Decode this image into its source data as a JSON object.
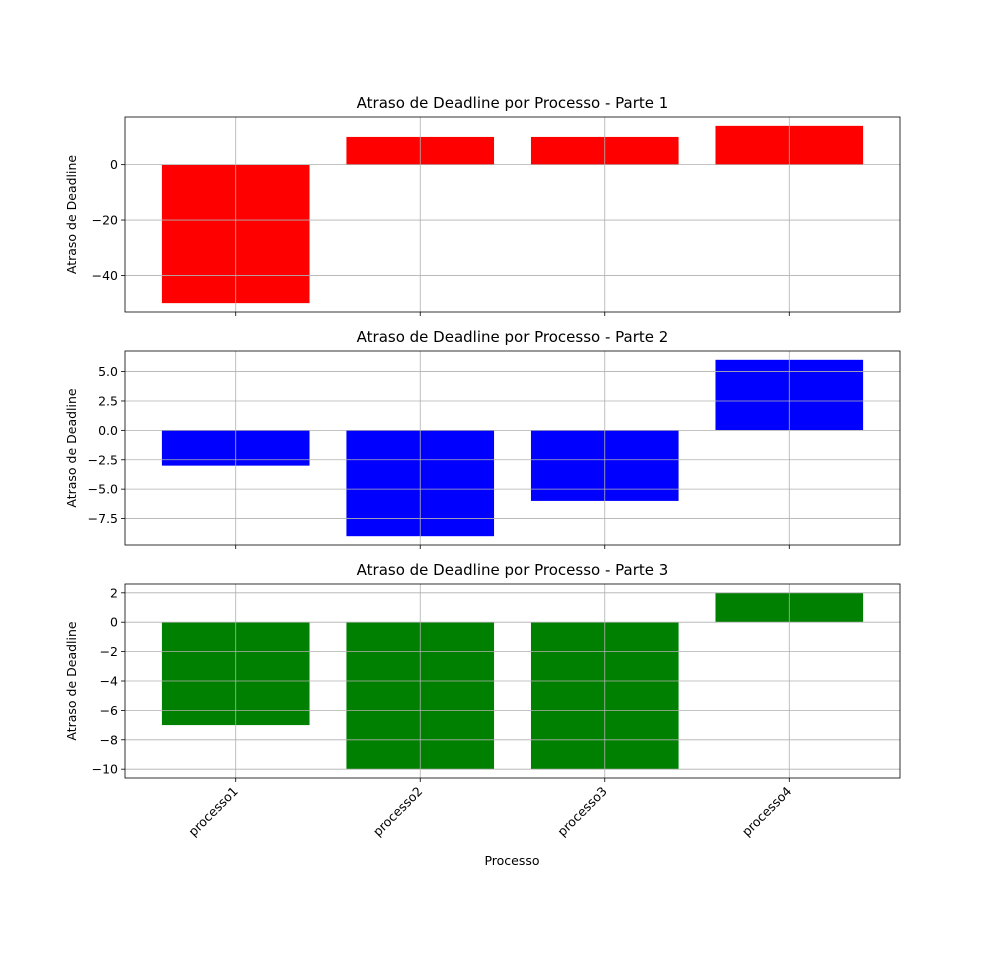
{
  "chart_data": [
    {
      "type": "bar",
      "title": "Atraso de Deadline por Processo - Parte 1",
      "ylabel": "Atraso de Deadline",
      "xlabel": "",
      "categories": [
        "processo1",
        "processo2",
        "processo3",
        "processo4"
      ],
      "values": [
        -50,
        10,
        10,
        14
      ],
      "color": "#ff0000",
      "ylim": [
        -53.2,
        17.2
      ],
      "yticks": [
        0,
        -20,
        -40
      ],
      "ytick_labels": [
        "0",
        "−20",
        "−40"
      ],
      "show_xtick_labels": false,
      "grid": true
    },
    {
      "type": "bar",
      "title": "Atraso de Deadline por Processo - Parte 2",
      "ylabel": "Atraso de Deadline",
      "xlabel": "",
      "categories": [
        "processo1",
        "processo2",
        "processo3",
        "processo4"
      ],
      "values": [
        -3,
        -9,
        -6,
        6
      ],
      "color": "#0000ff",
      "ylim": [
        -9.75,
        6.75
      ],
      "yticks": [
        5.0,
        2.5,
        0.0,
        -2.5,
        -5.0,
        -7.5
      ],
      "ytick_labels": [
        "5.0",
        "2.5",
        "0.0",
        "−2.5",
        "−5.0",
        "−7.5"
      ],
      "show_xtick_labels": false,
      "grid": true
    },
    {
      "type": "bar",
      "title": "Atraso de Deadline por Processo - Parte 3",
      "ylabel": "Atraso de Deadline",
      "xlabel": "Processo",
      "categories": [
        "processo1",
        "processo2",
        "processo3",
        "processo4"
      ],
      "values": [
        -7,
        -10,
        -10,
        2
      ],
      "color": "#008000",
      "ylim": [
        -10.6,
        2.6
      ],
      "yticks": [
        2,
        0,
        -2,
        -4,
        -6,
        -8,
        -10
      ],
      "ytick_labels": [
        "2",
        "0",
        "−2",
        "−4",
        "−6",
        "−8",
        "−10"
      ],
      "show_xtick_labels": true,
      "xtick_rotation": 45,
      "grid": true
    }
  ]
}
